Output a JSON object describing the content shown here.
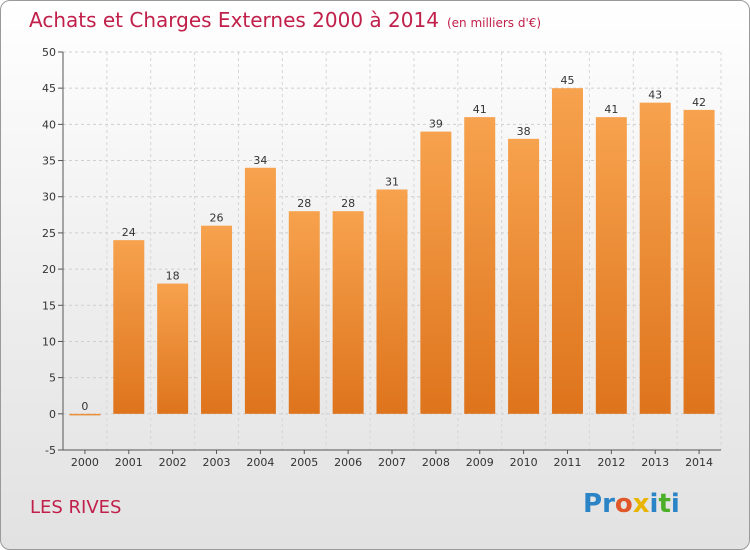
{
  "title": "Achats et Charges Externes 2000 à 2014",
  "unit": "(en milliers d'€)",
  "place": "LES RIVES",
  "logo": {
    "letters": [
      "P",
      "r",
      "o",
      "x",
      "i",
      "t",
      "i"
    ],
    "colors": [
      "#2a84c6",
      "#2a84c6",
      "#e0572a",
      "#e8b400",
      "#2a84c6",
      "#4caf2a",
      "#2a84c6"
    ]
  },
  "colors": {
    "bar_light": "#f7a24e",
    "bar_dark": "#de741c",
    "accent": "#c0204a"
  },
  "chart_data": {
    "type": "bar",
    "categories": [
      "2000",
      "2001",
      "2002",
      "2003",
      "2004",
      "2005",
      "2006",
      "2007",
      "2008",
      "2009",
      "2010",
      "2011",
      "2012",
      "2013",
      "2014"
    ],
    "values": [
      0,
      24,
      18,
      26,
      34,
      28,
      28,
      31,
      39,
      41,
      38,
      45,
      41,
      43,
      42
    ],
    "ylim": [
      -5,
      50
    ],
    "yticks": [
      -5,
      0,
      5,
      10,
      15,
      20,
      25,
      30,
      35,
      40,
      45,
      50
    ],
    "grid": true,
    "title": "Achats et Charges Externes 2000 à 2014",
    "xlabel": "",
    "ylabel": ""
  }
}
